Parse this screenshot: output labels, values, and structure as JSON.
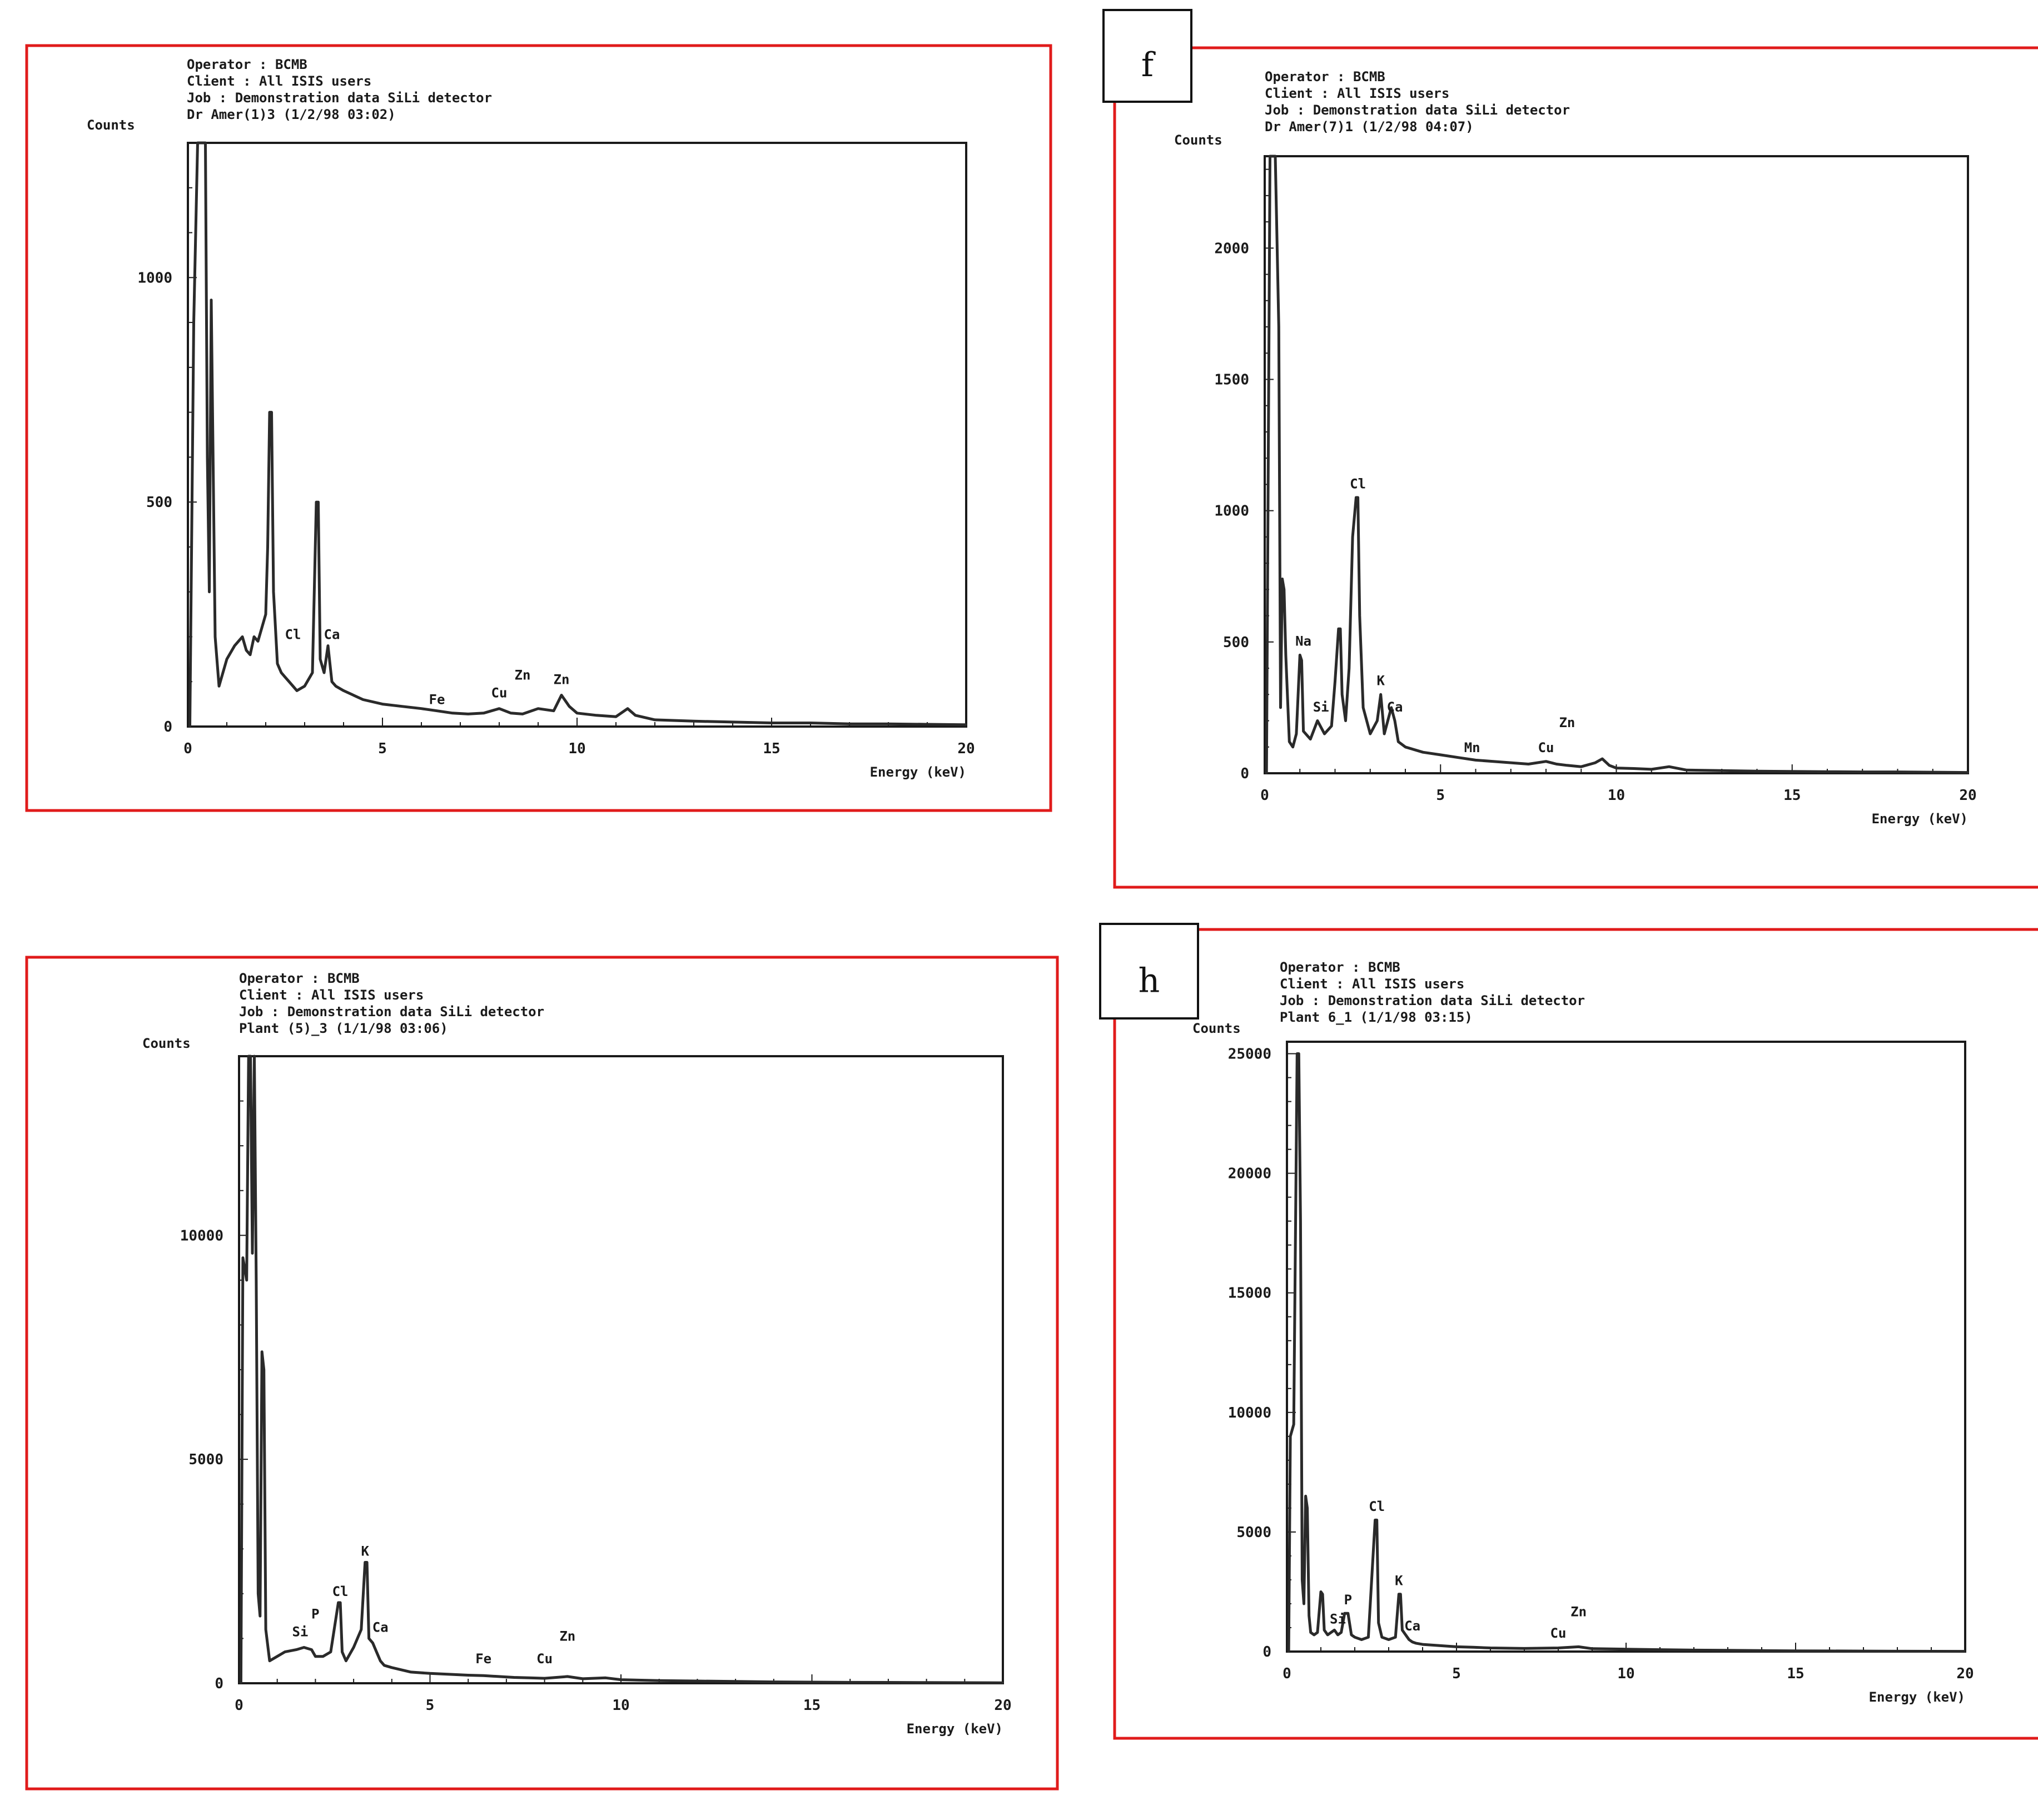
{
  "chart_data": [
    {
      "type": "line",
      "panel_letter": "",
      "header": [
        "Operator : BCMB",
        "Client : All ISIS users",
        "Job : Demonstration data SiLi detector",
        "Dr Amer(1)3 (1/2/98 03:02)"
      ],
      "ylabel": "Counts",
      "xlabel": "Energy (keV)",
      "xlim": [
        0,
        20
      ],
      "ylim": [
        0,
        1300
      ],
      "xticks": [
        0,
        5,
        10,
        15,
        20
      ],
      "xtick_labels": [
        "0",
        "5",
        "10",
        "15",
        "20"
      ],
      "yticks": [
        0,
        500,
        1000
      ],
      "ytick_labels": [
        "0",
        "500",
        "1000"
      ],
      "series": [
        {
          "x": [
            0.05,
            0.15,
            0.25,
            0.35,
            0.45,
            0.5,
            0.55,
            0.6,
            0.7,
            0.8,
            0.9,
            1.0,
            1.2,
            1.4,
            1.5,
            1.6,
            1.7,
            1.8,
            1.9,
            2.0,
            2.05,
            2.1,
            2.15,
            2.2,
            2.3,
            2.4,
            2.5,
            2.6,
            2.8,
            3.0,
            3.2,
            3.3,
            3.35,
            3.4,
            3.5,
            3.6,
            3.7,
            3.8,
            4.0,
            4.5,
            5.0,
            5.5,
            6.0,
            6.4,
            6.8,
            7.2,
            7.6,
            8.0,
            8.3,
            8.6,
            9.0,
            9.4,
            9.6,
            9.8,
            10.0,
            10.5,
            11.0,
            11.3,
            11.5,
            12.0,
            13.0,
            14.0,
            15.0,
            16.0,
            17.0,
            18.0,
            19.0,
            20.0
          ],
          "y": [
            0,
            900,
            1300,
            1300,
            1300,
            600,
            300,
            950,
            200,
            90,
            120,
            150,
            180,
            200,
            170,
            160,
            200,
            190,
            220,
            250,
            400,
            700,
            700,
            300,
            140,
            120,
            110,
            100,
            80,
            90,
            120,
            500,
            500,
            150,
            120,
            180,
            100,
            90,
            80,
            60,
            50,
            45,
            40,
            35,
            30,
            28,
            30,
            40,
            30,
            28,
            40,
            35,
            70,
            45,
            30,
            25,
            22,
            40,
            25,
            15,
            12,
            10,
            8,
            8,
            6,
            6,
            5,
            4
          ]
        }
      ],
      "annotations": [
        {
          "text": "Cl",
          "x": 2.7,
          "y": 180
        },
        {
          "text": "Ca",
          "x": 3.7,
          "y": 180
        },
        {
          "text": "Fe",
          "x": 6.4,
          "y": 35
        },
        {
          "text": "Cu",
          "x": 8.0,
          "y": 50
        },
        {
          "text": "Zn",
          "x": 8.6,
          "y": 90
        },
        {
          "text": "Zn",
          "x": 9.6,
          "y": 80
        }
      ]
    },
    {
      "type": "line",
      "panel_letter": "f",
      "header": [
        "Operator : BCMB",
        "Client : All ISIS users",
        "Job : Demonstration data SiLi detector",
        "Dr Amer(7)1 (1/2/98 04:07)"
      ],
      "ylabel": "Counts",
      "xlabel": "Energy (keV)",
      "xlim": [
        0,
        20
      ],
      "ylim": [
        0,
        2350
      ],
      "xticks": [
        0,
        5,
        10,
        15,
        20
      ],
      "xtick_labels": [
        "0",
        "5",
        "10",
        "15",
        "20"
      ],
      "yticks": [
        0,
        500,
        1000,
        1500,
        2000
      ],
      "ytick_labels": [
        "0",
        "500",
        "1000",
        "1500",
        "2000"
      ],
      "series": [
        {
          "x": [
            0.05,
            0.15,
            0.2,
            0.3,
            0.4,
            0.45,
            0.5,
            0.55,
            0.6,
            0.7,
            0.8,
            0.9,
            1.0,
            1.05,
            1.1,
            1.3,
            1.5,
            1.7,
            1.9,
            2.0,
            2.1,
            2.15,
            2.2,
            2.3,
            2.4,
            2.5,
            2.6,
            2.65,
            2.7,
            2.8,
            3.0,
            3.2,
            3.3,
            3.4,
            3.6,
            3.7,
            3.8,
            4.0,
            4.5,
            5.0,
            5.5,
            6.0,
            6.5,
            7.0,
            7.5,
            8.0,
            8.3,
            8.6,
            9.0,
            9.4,
            9.6,
            9.8,
            10.0,
            10.5,
            11.0,
            11.5,
            12.0,
            13.0,
            14.0,
            15.0,
            16.0,
            17.0,
            18.0,
            19.0,
            20.0
          ],
          "y": [
            0,
            2350,
            2350,
            2350,
            1700,
            250,
            740,
            700,
            450,
            120,
            100,
            150,
            450,
            430,
            160,
            130,
            200,
            150,
            180,
            350,
            550,
            550,
            300,
            200,
            400,
            900,
            1050,
            1050,
            600,
            250,
            150,
            200,
            300,
            150,
            250,
            200,
            120,
            100,
            80,
            70,
            60,
            50,
            45,
            40,
            35,
            45,
            35,
            30,
            25,
            40,
            55,
            30,
            20,
            18,
            15,
            25,
            12,
            10,
            8,
            7,
            6,
            5,
            5,
            4,
            3
          ]
        }
      ],
      "annotations": [
        {
          "text": "Na",
          "x": 1.1,
          "y": 460
        },
        {
          "text": "Si",
          "x": 1.6,
          "y": 210
        },
        {
          "text": "Cl",
          "x": 2.65,
          "y": 1060
        },
        {
          "text": "K",
          "x": 3.3,
          "y": 310
        },
        {
          "text": "Ca",
          "x": 3.7,
          "y": 210
        },
        {
          "text": "Mn",
          "x": 5.9,
          "y": 55
        },
        {
          "text": "Cu",
          "x": 8.0,
          "y": 55
        },
        {
          "text": "Zn",
          "x": 8.6,
          "y": 150
        }
      ]
    },
    {
      "type": "line",
      "panel_letter": "",
      "header": [
        "Operator : BCMB",
        "Client : All ISIS users",
        "Job : Demonstration data SiLi detector",
        "Plant (5)_3 (1/1/98 03:06)"
      ],
      "ylabel": "Counts",
      "xlabel": "Energy (keV)",
      "xlim": [
        0,
        20
      ],
      "ylim": [
        0,
        14000
      ],
      "xticks": [
        0,
        5,
        10,
        15,
        20
      ],
      "xtick_labels": [
        "0",
        "5",
        "10",
        "15",
        "20"
      ],
      "yticks": [
        0,
        5000,
        10000
      ],
      "ytick_labels": [
        "0",
        "5000",
        "10000"
      ],
      "series": [
        {
          "x": [
            0.05,
            0.1,
            0.2,
            0.25,
            0.3,
            0.35,
            0.4,
            0.45,
            0.5,
            0.55,
            0.6,
            0.65,
            0.7,
            0.8,
            1.0,
            1.2,
            1.5,
            1.7,
            1.9,
            2.0,
            2.2,
            2.4,
            2.6,
            2.65,
            2.7,
            2.8,
            3.0,
            3.2,
            3.3,
            3.35,
            3.4,
            3.5,
            3.6,
            3.7,
            3.8,
            4.0,
            4.5,
            5.0,
            5.5,
            6.0,
            6.4,
            6.8,
            7.2,
            7.6,
            8.0,
            8.6,
            9.0,
            9.6,
            10.0,
            11.0,
            12.0,
            13.0,
            14.0,
            15.0,
            16.0,
            17.0,
            18.0,
            19.0,
            20.0
          ],
          "y": [
            0,
            9500,
            9000,
            14000,
            14000,
            9600,
            14000,
            9000,
            2000,
            1500,
            7400,
            7000,
            1200,
            500,
            600,
            700,
            750,
            800,
            750,
            600,
            600,
            700,
            1800,
            1800,
            700,
            500,
            800,
            1200,
            2700,
            2700,
            1000,
            900,
            700,
            500,
            400,
            350,
            250,
            220,
            200,
            180,
            170,
            150,
            130,
            120,
            110,
            150,
            100,
            120,
            80,
            60,
            50,
            40,
            30,
            25,
            20,
            18,
            15,
            12,
            10
          ]
        }
      ],
      "annotations": [
        {
          "text": "Si",
          "x": 1.6,
          "y": 900
        },
        {
          "text": "P",
          "x": 2.0,
          "y": 1300
        },
        {
          "text": "Cl",
          "x": 2.65,
          "y": 1800
        },
        {
          "text": "K",
          "x": 3.3,
          "y": 2700
        },
        {
          "text": "Ca",
          "x": 3.7,
          "y": 1000
        },
        {
          "text": "Fe",
          "x": 6.4,
          "y": 300
        },
        {
          "text": "Cu",
          "x": 8.0,
          "y": 300
        },
        {
          "text": "Zn",
          "x": 8.6,
          "y": 800
        }
      ]
    },
    {
      "type": "line",
      "panel_letter": "h",
      "header": [
        "Operator : BCMB",
        "Client : All ISIS users",
        "Job : Demonstration data SiLi detector",
        "Plant 6_1 (1/1/98 03:15)"
      ],
      "ylabel": "Counts",
      "xlabel": "Energy (keV)",
      "xlim": [
        0,
        20
      ],
      "ylim": [
        0,
        25500
      ],
      "xticks": [
        0,
        5,
        10,
        15,
        20
      ],
      "xtick_labels": [
        "0",
        "5",
        "10",
        "15",
        "20"
      ],
      "yticks": [
        0,
        5000,
        10000,
        15000,
        20000,
        25000
      ],
      "ytick_labels": [
        "0",
        "5000",
        "10000",
        "15000",
        "20000",
        "25000"
      ],
      "series": [
        {
          "x": [
            0.05,
            0.1,
            0.2,
            0.3,
            0.35,
            0.4,
            0.45,
            0.5,
            0.55,
            0.6,
            0.65,
            0.7,
            0.8,
            0.9,
            1.0,
            1.05,
            1.1,
            1.2,
            1.4,
            1.5,
            1.6,
            1.7,
            1.8,
            1.9,
            2.0,
            2.2,
            2.4,
            2.6,
            2.65,
            2.7,
            2.8,
            3.0,
            3.2,
            3.3,
            3.35,
            3.4,
            3.5,
            3.6,
            3.7,
            3.8,
            4.0,
            4.5,
            5.0,
            5.5,
            6.0,
            7.0,
            8.0,
            8.6,
            9.0,
            10.0,
            11.0,
            12.0,
            13.0,
            14.0,
            15.0,
            16.0,
            17.0,
            18.0,
            19.0,
            20.0
          ],
          "y": [
            0,
            9000,
            9500,
            25000,
            25000,
            18000,
            3000,
            2000,
            6500,
            6000,
            1500,
            800,
            700,
            800,
            2500,
            2400,
            900,
            700,
            900,
            700,
            800,
            1600,
            1600,
            700,
            600,
            500,
            600,
            5500,
            5500,
            1200,
            600,
            500,
            600,
            2400,
            2400,
            900,
            700,
            500,
            400,
            350,
            300,
            250,
            200,
            180,
            150,
            130,
            150,
            200,
            120,
            100,
            80,
            60,
            50,
            40,
            30,
            25,
            20,
            15,
            12,
            10
          ]
        }
      ],
      "annotations": [
        {
          "text": "Si",
          "x": 1.5,
          "y": 900
        },
        {
          "text": "P",
          "x": 1.8,
          "y": 1700
        },
        {
          "text": "Cl",
          "x": 2.65,
          "y": 5600
        },
        {
          "text": "K",
          "x": 3.3,
          "y": 2500
        },
        {
          "text": "Ca",
          "x": 3.7,
          "y": 600
        },
        {
          "text": "Cu",
          "x": 8.0,
          "y": 300
        },
        {
          "text": "Zn",
          "x": 8.6,
          "y": 1200
        }
      ]
    }
  ],
  "colors": {
    "frame": "#e01b1b",
    "ink": "#1a1a1a",
    "plot_line": "#2a2a2a"
  }
}
